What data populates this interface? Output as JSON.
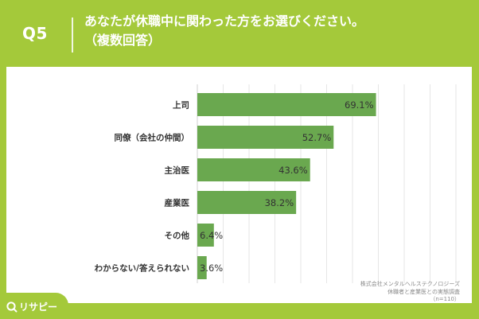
{
  "header": {
    "question_number": "Q5",
    "question_line1": "あなたが休職中に関わった方をお選びください。",
    "question_line2": "（複数回答）"
  },
  "chart_data": {
    "type": "bar",
    "orientation": "horizontal",
    "categories": [
      "上司",
      "同僚（会社の仲間）",
      "主治医",
      "産業医",
      "その他",
      "わからない/答えられない"
    ],
    "values": [
      69.1,
      52.7,
      43.6,
      38.2,
      6.4,
      3.6
    ],
    "value_labels": [
      "69.1%",
      "52.7%",
      "43.6%",
      "38.2%",
      "6.4%",
      "3.6%"
    ],
    "xlim": [
      0,
      100
    ],
    "grid": true,
    "bar_color": "#6aa84f"
  },
  "source": {
    "line1": "株式会社メンタルヘルステクノロジーズ",
    "line2": "休職者と産業医との実態調査",
    "line3": "（n=110）"
  },
  "brand": {
    "name": "リサピー"
  },
  "colors": {
    "background": "#a4c93a",
    "bar": "#6aa84f",
    "grid": "#e6e6e6"
  }
}
